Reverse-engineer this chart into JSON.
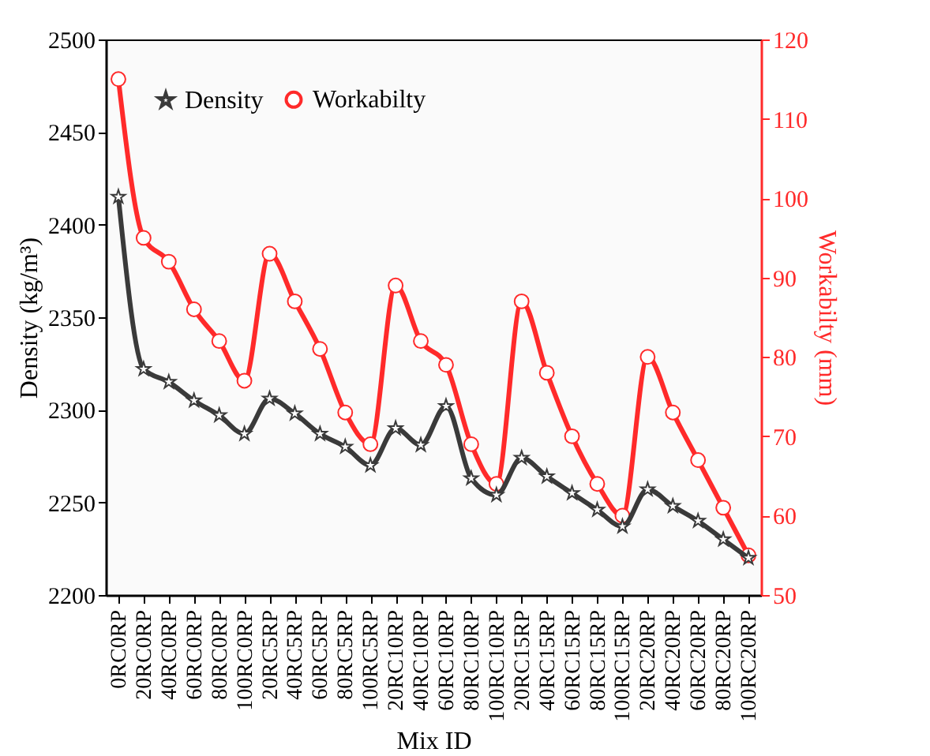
{
  "chart_data": {
    "type": "line",
    "xlabel": "Mix ID",
    "ylabel": "Density (kg/m³)",
    "y2label": "Workabilty (mm)",
    "categories": [
      "0RC0RP",
      "20RC0RP",
      "40RC0RP",
      "60RC0RP",
      "80RC0RP",
      "100RC0RP",
      "20RC5RP",
      "40RC5RP",
      "60RC5RP",
      "80RC5RP",
      "100RC5RP",
      "20RC10RP",
      "40RC10RP",
      "60RC10RP",
      "80RC10RP",
      "100RC10RP",
      "20RC15RP",
      "40RC15RP",
      "60RC15RP",
      "80RC15RP",
      "100RC15RP",
      "20RC20RP",
      "40RC20RP",
      "60RC20RP",
      "80RC20RP",
      "100RC20RP"
    ],
    "series": [
      {
        "name": "Density",
        "color": "#3a3a3a",
        "marker": "star",
        "values": [
          2415,
          2322,
          2315,
          2305,
          2297,
          2287,
          2306,
          2298,
          2287,
          2280,
          2270,
          2290,
          2281,
          2302,
          2263,
          2254,
          2274,
          2264,
          2255,
          2246,
          2237,
          2257,
          2248,
          2240,
          2230,
          2220
        ]
      },
      {
        "name": "Workabilty",
        "color": "#ff2a2a",
        "marker": "circle",
        "axis": "y2",
        "values": [
          115,
          95,
          92,
          86,
          82,
          77,
          93,
          87,
          81,
          73,
          69,
          89,
          82,
          79,
          69,
          64,
          87,
          78,
          70,
          64,
          60,
          80,
          73,
          67,
          61,
          55
        ]
      }
    ],
    "ylim": [
      2200,
      2500
    ],
    "yticks": [
      2200,
      2250,
      2300,
      2350,
      2400,
      2450,
      2500
    ],
    "y2lim": [
      50,
      120
    ],
    "y2ticks": [
      50,
      60,
      70,
      80,
      90,
      100,
      110,
      120
    ],
    "grid": false,
    "legend": "top left"
  }
}
